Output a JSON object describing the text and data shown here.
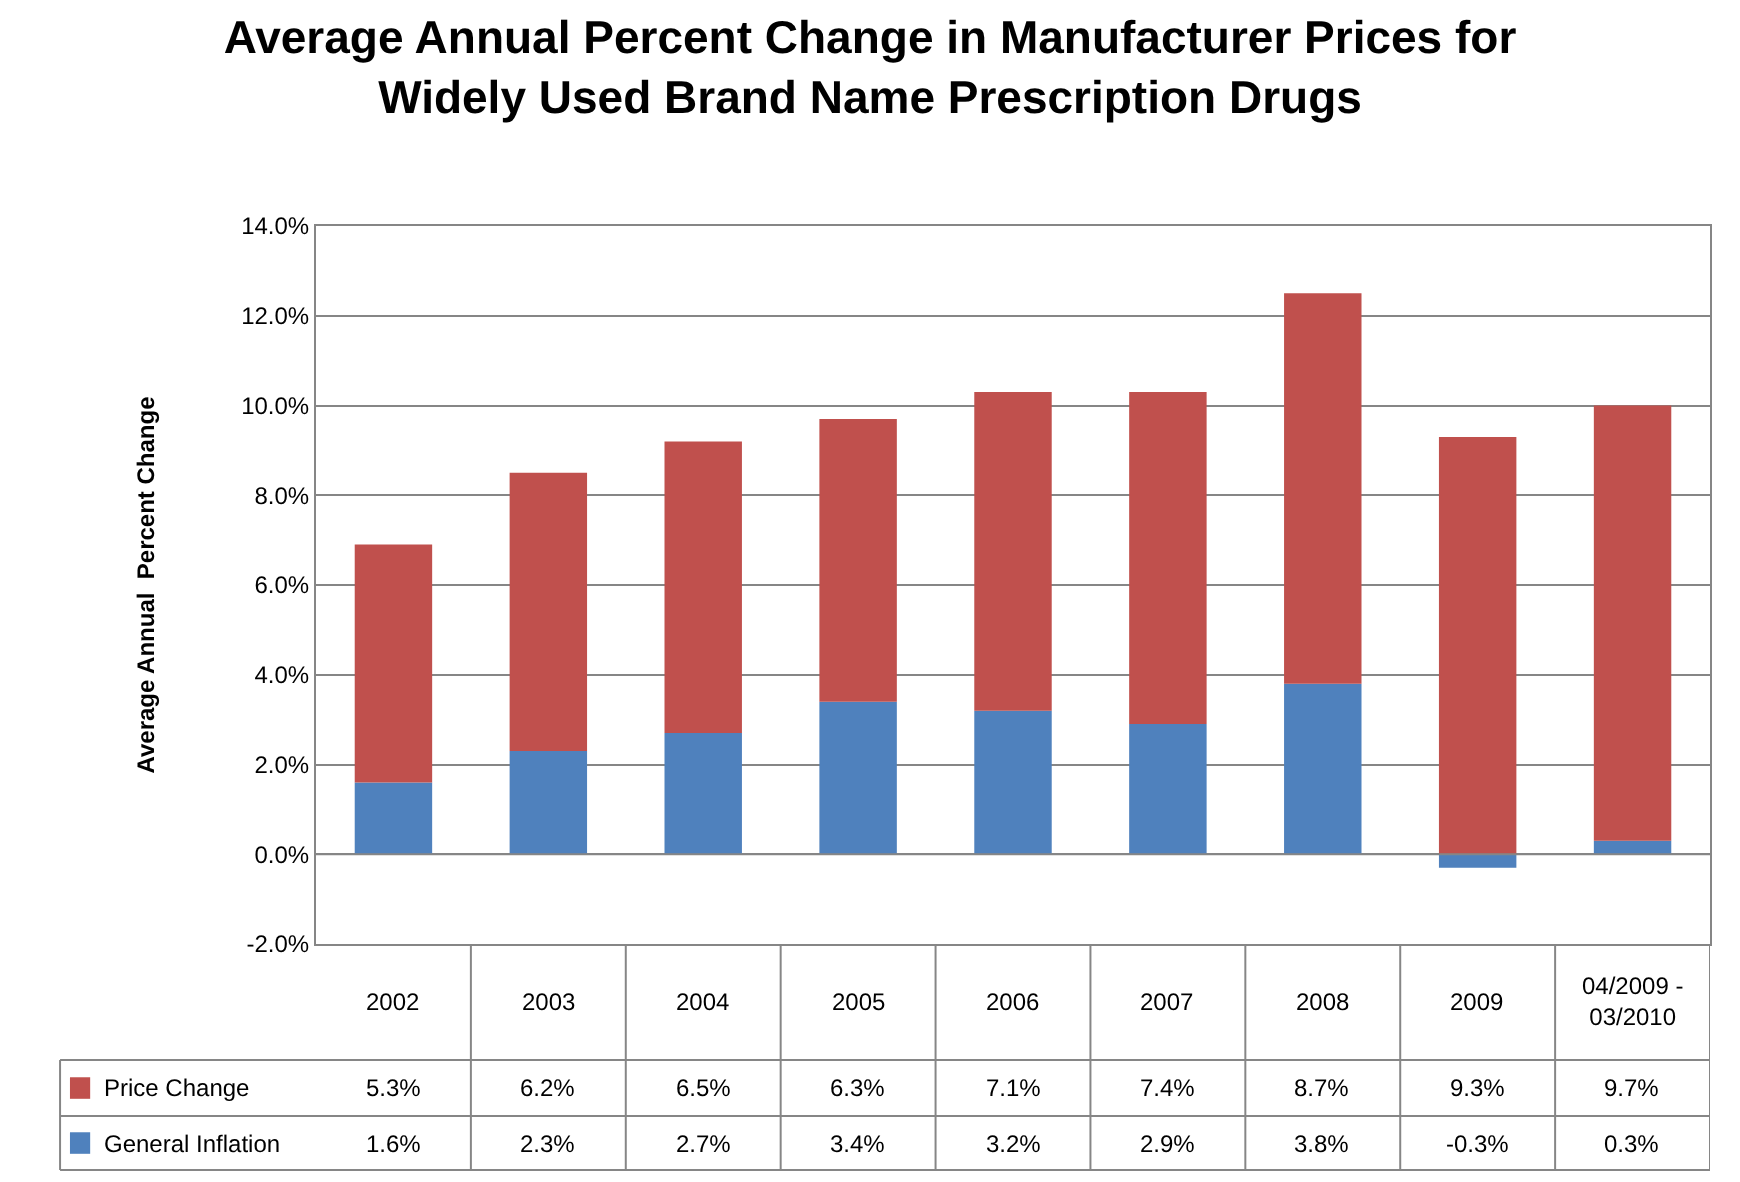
{
  "chart_data": {
    "type": "bar",
    "title": "Average Annual Percent Change in Manufacturer Prices for Widely Used Brand Name Prescription Drugs",
    "ylabel": "Average Annual  Percent Change",
    "categories": [
      "2002",
      "2003",
      "2004",
      "2005",
      "2006",
      "2007",
      "2008",
      "2009",
      "04/2009 - 03/2010"
    ],
    "stacked": true,
    "series": [
      {
        "name": "General Inflation",
        "color": "#4f81bd",
        "values": [
          1.6,
          2.3,
          2.7,
          3.4,
          3.2,
          2.9,
          3.8,
          -0.3,
          0.3
        ],
        "value_labels": [
          "1.6%",
          "2.3%",
          "2.7%",
          "3.4%",
          "3.2%",
          "2.9%",
          "3.8%",
          "-0.3%",
          "0.3%"
        ]
      },
      {
        "name": "Price Change",
        "color": "#c0504d",
        "values": [
          5.3,
          6.2,
          6.5,
          6.3,
          7.1,
          7.4,
          8.7,
          9.3,
          9.7
        ],
        "value_labels": [
          "5.3%",
          "6.2%",
          "6.5%",
          "6.3%",
          "7.1%",
          "7.4%",
          "8.7%",
          "9.3%",
          "9.7%"
        ]
      }
    ],
    "ylim": [
      -2,
      14
    ],
    "yticks": [
      {
        "value": -2,
        "label": "-2.0%"
      },
      {
        "value": 0,
        "label": "0.0%"
      },
      {
        "value": 2,
        "label": "2.0%"
      },
      {
        "value": 4,
        "label": "4.0%"
      },
      {
        "value": 6,
        "label": "6.0%"
      },
      {
        "value": 8,
        "label": "8.0%"
      },
      {
        "value": 10,
        "label": "10.0%"
      },
      {
        "value": 12,
        "label": "12.0%"
      },
      {
        "value": 14,
        "label": "14.0%"
      }
    ],
    "grid": "y",
    "legend": "bottom left"
  }
}
